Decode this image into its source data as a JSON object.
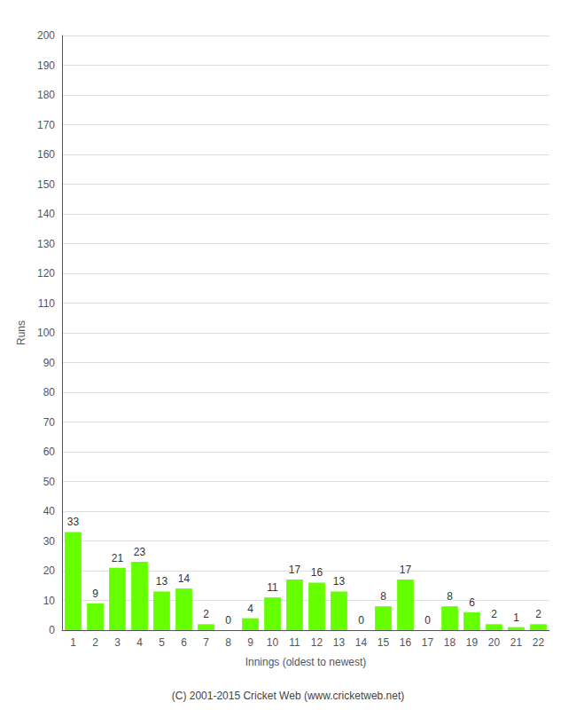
{
  "chart_data": {
    "type": "bar",
    "categories": [
      "1",
      "2",
      "3",
      "4",
      "5",
      "6",
      "7",
      "8",
      "9",
      "10",
      "11",
      "12",
      "13",
      "14",
      "15",
      "16",
      "17",
      "18",
      "19",
      "20",
      "21",
      "22"
    ],
    "values": [
      33,
      9,
      21,
      23,
      13,
      14,
      2,
      0,
      4,
      11,
      17,
      16,
      13,
      0,
      8,
      17,
      0,
      8,
      6,
      2,
      1,
      2
    ],
    "color": "#66ff00",
    "x_label": "Innings (oldest to newest)",
    "y_label": "Runs",
    "ylim": [
      0,
      200
    ],
    "yticks": [
      0,
      10,
      20,
      30,
      40,
      50,
      60,
      70,
      80,
      90,
      100,
      110,
      120,
      130,
      140,
      150,
      160,
      170,
      180,
      190,
      200
    ],
    "grid": true,
    "data_labels": true,
    "annotations": [
      "(C) 2001-2015 Cricket Web (www.cricketweb.net)"
    ]
  }
}
